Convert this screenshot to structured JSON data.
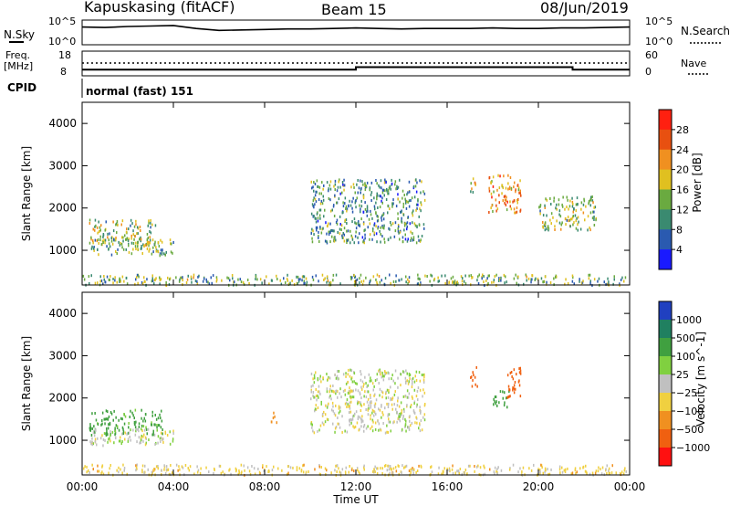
{
  "header": {
    "station": "Kapuskasing (fitACF)",
    "beam": "Beam 15",
    "date": "08/Jun/2019"
  },
  "noise_panel": {
    "left_label": "N.Sky",
    "right_label": "N.Search",
    "left_ticks": [
      "10^5",
      "10^0"
    ],
    "right_ticks": [
      "10^5",
      "10^0"
    ]
  },
  "freq_panel": {
    "left_label_1": "Freq.",
    "left_label_2": "[MHz]",
    "right_label": "Nave",
    "left_ticks": [
      "18",
      "8"
    ],
    "right_ticks": [
      "60",
      "0"
    ]
  },
  "cpid": {
    "label": "CPID",
    "program": "normal (fast) 151"
  },
  "x_axis": {
    "label": "Time UT",
    "ticks": [
      "00:00",
      "04:00",
      "08:00",
      "12:00",
      "16:00",
      "20:00",
      "00:00"
    ]
  },
  "power_panel": {
    "ylabel": "Slant Range [km]",
    "yticks": [
      "1000",
      "2000",
      "3000",
      "4000"
    ],
    "colorbar_label": "Power [dB]",
    "colorbar_ticks": [
      "4",
      "8",
      "12",
      "16",
      "20",
      "24",
      "28"
    ],
    "colors": [
      "#1a1aff",
      "#2a5ab0",
      "#3a8a70",
      "#6aaa40",
      "#e0c020",
      "#f09020",
      "#e85010",
      "#ff2010"
    ]
  },
  "velocity_panel": {
    "ylabel": "Slant Range [km]",
    "yticks": [
      "1000",
      "2000",
      "3000",
      "4000"
    ],
    "colorbar_label": "Velocity [m s^-1]",
    "colorbar_ticks": [
      "1000",
      "500",
      "100",
      "25",
      "−25",
      "−100",
      "−500",
      "−1000"
    ],
    "colors": [
      "#2040c0",
      "#208060",
      "#40a040",
      "#80d040",
      "#c0c0c0",
      "#f0d040",
      "#f09020",
      "#f06010",
      "#ff1010"
    ]
  },
  "chart_data": [
    {
      "type": "line",
      "title": "",
      "xlabel": "",
      "ylabel": "N.Sky",
      "x_range_hours": [
        0,
        24
      ],
      "y_scale": "log",
      "series": [
        {
          "name": "N.Sky",
          "x": [
            0,
            1,
            2,
            3,
            4,
            5,
            6,
            7,
            8,
            9,
            10,
            11,
            12,
            13,
            14,
            15,
            16,
            17,
            18,
            19,
            20,
            21,
            22,
            23,
            24
          ],
          "values_log10": [
            3.6,
            3.5,
            3.7,
            3.8,
            3.9,
            3.3,
            2.9,
            3.0,
            3.1,
            3.2,
            3.2,
            3.3,
            3.4,
            3.3,
            3.2,
            3.3,
            3.3,
            3.3,
            3.4,
            3.3,
            3.3,
            3.4,
            3.4,
            3.5,
            3.6
          ]
        }
      ]
    },
    {
      "type": "line",
      "title": "",
      "xlabel": "",
      "ylabel": "Freq. [MHz]",
      "x_range_hours": [
        0,
        24
      ],
      "ylim": [
        8,
        18
      ],
      "series": [
        {
          "name": "Freq.",
          "x": [
            0,
            12,
            12,
            21.5,
            21.5,
            24
          ],
          "values": [
            10.5,
            10.5,
            11.5,
            11.5,
            10.5,
            10.5
          ]
        },
        {
          "name": "Nave",
          "x": [
            0,
            24
          ],
          "values": [
            13.2,
            13.2
          ]
        }
      ]
    },
    {
      "type": "heatmap",
      "title": "Power",
      "xlabel": "Time UT",
      "ylabel": "Slant Range [km]",
      "x_range_hours": [
        0,
        24
      ],
      "ylim": [
        180,
        4500
      ],
      "colorbar_label": "Power [dB]",
      "colorbar_range": [
        0,
        30
      ],
      "regions": [
        {
          "x": [
            0.3,
            3.2
          ],
          "range": [
            1150,
            1750
          ],
          "level": 14
        },
        {
          "x": [
            0.3,
            4.0
          ],
          "range": [
            900,
            1300
          ],
          "level": 12
        },
        {
          "x": [
            0,
            24
          ],
          "range": [
            200,
            450
          ],
          "level": 12
        },
        {
          "x": [
            10.0,
            15.0
          ],
          "range": [
            1200,
            2700
          ],
          "level": 10
        },
        {
          "x": [
            17.8,
            19.2
          ],
          "range": [
            1900,
            2800
          ],
          "level": 20
        },
        {
          "x": [
            17.0,
            17.3
          ],
          "range": [
            2400,
            2800
          ],
          "level": 16
        },
        {
          "x": [
            20.0,
            22.5
          ],
          "range": [
            1500,
            2300
          ],
          "level": 14
        }
      ]
    },
    {
      "type": "heatmap",
      "title": "Velocity",
      "xlabel": "Time UT",
      "ylabel": "Slant Range [km]",
      "x_range_hours": [
        0,
        24
      ],
      "ylim": [
        180,
        4500
      ],
      "colorbar_label": "Velocity [m s^-1]",
      "colorbar_range": [
        -1000,
        1000
      ],
      "regions": [
        {
          "x": [
            0.3,
            3.5
          ],
          "range": [
            1150,
            1750
          ],
          "velocity": 150
        },
        {
          "x": [
            0.3,
            4.0
          ],
          "range": [
            900,
            1300
          ],
          "velocity": 0
        },
        {
          "x": [
            0,
            24
          ],
          "range": [
            200,
            450
          ],
          "velocity": -50
        },
        {
          "x": [
            10.0,
            15.0
          ],
          "range": [
            1200,
            2700
          ],
          "velocity": 0
        },
        {
          "x": [
            17.0,
            17.3
          ],
          "range": [
            2300,
            2800
          ],
          "velocity": -800
        },
        {
          "x": [
            18.0,
            18.7
          ],
          "range": [
            1800,
            2200
          ],
          "velocity": 400
        },
        {
          "x": [
            18.6,
            19.2
          ],
          "range": [
            2000,
            2800
          ],
          "velocity": -600
        },
        {
          "x": [
            8.2,
            8.5
          ],
          "range": [
            1400,
            1700
          ],
          "velocity": -400
        }
      ]
    }
  ]
}
